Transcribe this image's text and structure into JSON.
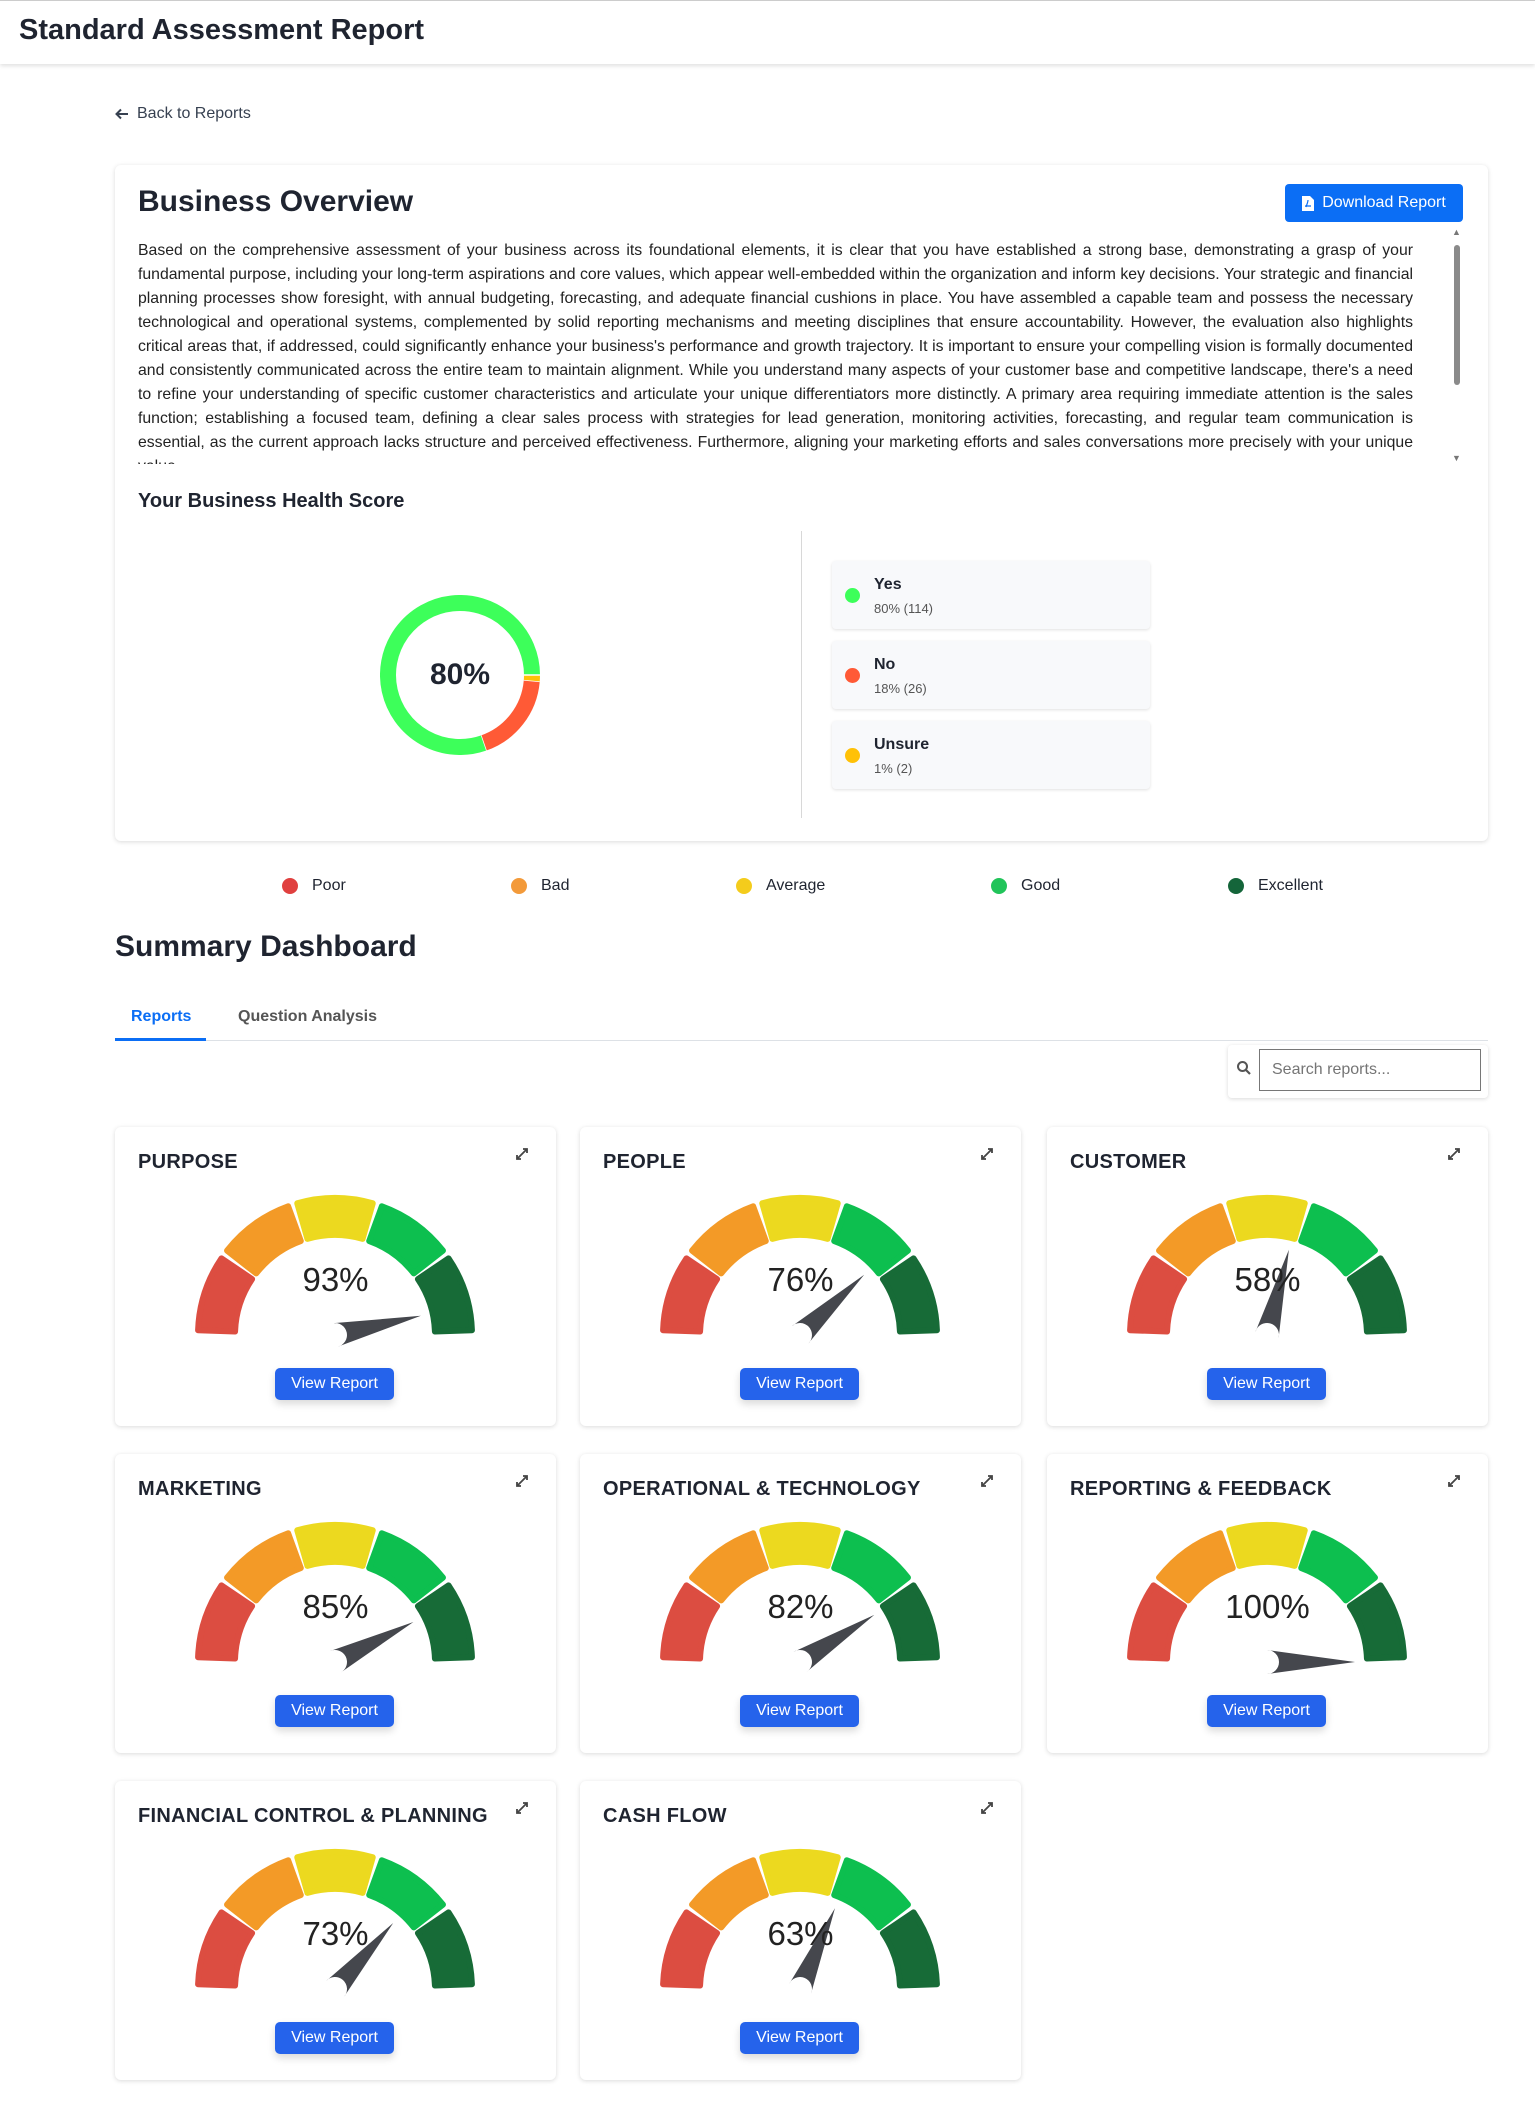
{
  "header": {
    "title": "Standard Assessment Report"
  },
  "back_link": "Back to Reports",
  "overview": {
    "title": "Business Overview",
    "download_label": "Download Report",
    "text": "Based on the comprehensive assessment of your business across its foundational elements, it is clear that you have established a strong base, demonstrating a grasp of your fundamental purpose, including your long-term aspirations and core values, which appear well-embedded within the organization and inform key decisions. Your strategic and financial planning processes show foresight, with annual budgeting, forecasting, and adequate financial cushions in place. You have assembled a capable team and possess the necessary technological and operational systems, complemented by solid reporting mechanisms and meeting disciplines that ensure accountability. However, the evaluation also highlights critical areas that, if addressed, could significantly enhance your business's performance and growth trajectory. It is important to ensure your compelling vision is formally documented and consistently communicated across the entire team to maintain alignment. While you understand many aspects of your customer base and competitive landscape, there's a need to refine your understanding of specific customer characteristics and articulate your unique differentiators more distinctly. A primary area requiring immediate attention is the sales function; establishing a focused team, defining a clear sales process with strategies for lead generation, monitoring activities, forecasting, and regular team communication is essential, as the current approach lacks structure and perceived effectiveness. Furthermore, aligning your marketing efforts and sales conversations more precisely with your unique value"
  },
  "health": {
    "title": "Your Business Health Score",
    "center_label": "80%",
    "items": [
      {
        "label": "Yes",
        "detail": "80% (114)",
        "count": 114,
        "color": "#3dff5a"
      },
      {
        "label": "No",
        "detail": "18% (26)",
        "count": 26,
        "color": "#ff5a36"
      },
      {
        "label": "Unsure",
        "detail": "1% (2)",
        "count": 2,
        "color": "#ffc107"
      }
    ]
  },
  "rating_legend": [
    {
      "label": "Poor",
      "color": "#e0403f"
    },
    {
      "label": "Bad",
      "color": "#f39a3a"
    },
    {
      "label": "Average",
      "color": "#f4cc1c"
    },
    {
      "label": "Good",
      "color": "#21c45a"
    },
    {
      "label": "Excellent",
      "color": "#14653a"
    }
  ],
  "summary": {
    "title": "Summary Dashboard",
    "tabs": [
      {
        "label": "Reports",
        "active": true
      },
      {
        "label": "Question Analysis",
        "active": false
      }
    ],
    "search_placeholder": "Search reports...",
    "gauge_colors": [
      "#dc4d41",
      "#f39a27",
      "#ecd91f",
      "#0dbf4f",
      "#176b37"
    ],
    "view_label": "View Report",
    "cards": [
      {
        "title": "PURPOSE",
        "value": 93,
        "label": "93%"
      },
      {
        "title": "PEOPLE",
        "value": 76,
        "label": "76%"
      },
      {
        "title": "CUSTOMER",
        "value": 58,
        "label": "58%"
      },
      {
        "title": "MARKETING",
        "value": 85,
        "label": "85%"
      },
      {
        "title": "OPERATIONAL & TECHNOLOGY",
        "value": 82,
        "label": "82%"
      },
      {
        "title": "REPORTING & FEEDBACK",
        "value": 100,
        "label": "100%"
      },
      {
        "title": "FINANCIAL CONTROL & PLANNING",
        "value": 73,
        "label": "73%"
      },
      {
        "title": "CASH FLOW",
        "value": 63,
        "label": "63%"
      }
    ]
  }
}
